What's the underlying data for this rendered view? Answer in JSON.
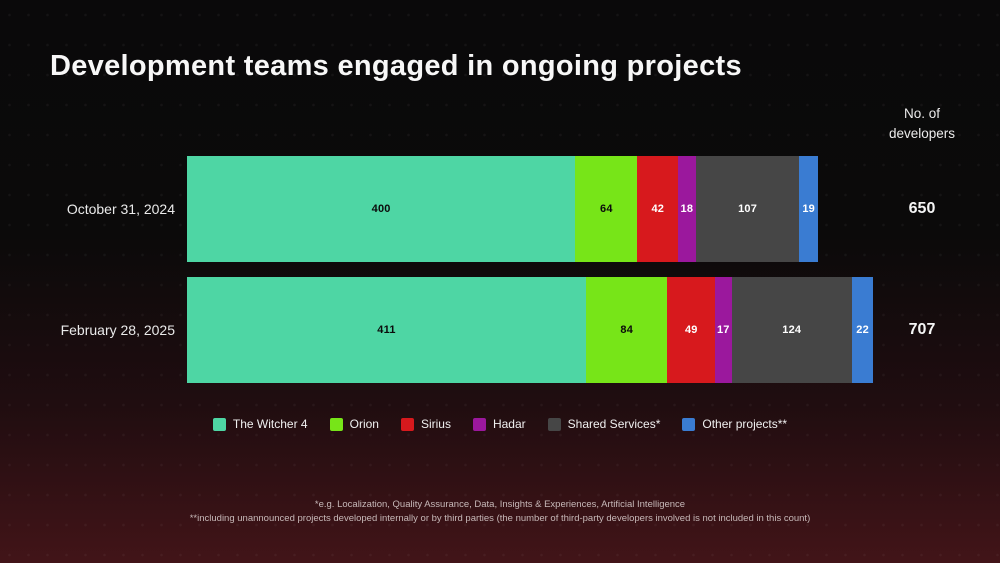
{
  "title": "Development teams engaged in ongoing projects",
  "axis_header": "No. of\ndevelopers",
  "chart_data": {
    "type": "bar",
    "orientation": "horizontal",
    "stacked": true,
    "categories": [
      "October 31, 2024",
      "February 28, 2025"
    ],
    "series": [
      {
        "name": "The Witcher 4",
        "color": "#4ed6a4",
        "label_color": "#0b0b0b",
        "values": [
          400,
          411
        ]
      },
      {
        "name": "Orion",
        "color": "#77e518",
        "label_color": "#0b0b0b",
        "values": [
          64,
          84
        ]
      },
      {
        "name": "Sirius",
        "color": "#d7191d",
        "label_color": "#ffffff",
        "values": [
          42,
          49
        ]
      },
      {
        "name": "Hadar",
        "color": "#9b189d",
        "label_color": "#ffffff",
        "values": [
          18,
          17
        ]
      },
      {
        "name": "Shared Services*",
        "color": "#464646",
        "label_color": "#ffffff",
        "values": [
          107,
          124
        ]
      },
      {
        "name": "Other projects**",
        "color": "#3a7cd2",
        "label_color": "#ffffff",
        "values": [
          19,
          22
        ]
      }
    ],
    "totals": [
      650,
      707
    ],
    "value_labels": true,
    "legend_position": "bottom",
    "grid": false
  },
  "footnotes": [
    "*e.g. Localization, Quality Assurance, Data, Insights & Experiences, Artificial Intelligence",
    "**including unannounced projects developed internally or by third parties (the number of third-party developers involved is not included in this count)"
  ]
}
